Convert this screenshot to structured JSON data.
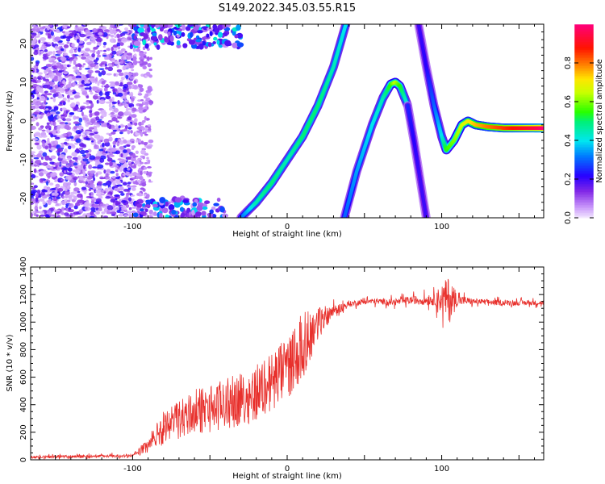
{
  "title": "S149.2022.345.03.55.R15",
  "chart_data": [
    {
      "type": "heatmap",
      "xlabel": "Height of straight line (km)",
      "ylabel": "Frequency (Hz)",
      "xlim": [
        -166,
        166
      ],
      "ylim": [
        -25,
        25
      ],
      "x_ticks": [
        -100,
        0,
        100
      ],
      "y_ticks": [
        20,
        10,
        0,
        -10,
        -20
      ],
      "colorbar": {
        "label": "Normalized spectral amplitude",
        "range": [
          0,
          1
        ],
        "ticks": [
          "0.0",
          "0.2",
          "0.4",
          "0.6",
          "0.8"
        ],
        "tick_values": [
          0.0,
          0.2,
          0.4,
          0.6,
          0.8
        ]
      },
      "traces": [
        {
          "x": [
            -30,
            -20,
            -10,
            0,
            10,
            20,
            30,
            38
          ],
          "y": [
            -25,
            -21,
            -16,
            -10,
            -4,
            4,
            14,
            25
          ],
          "strength": [
            0.3,
            0.45,
            0.5,
            0.45,
            0.5,
            0.5,
            0.45,
            0.4
          ]
        },
        {
          "x": [
            37,
            45,
            55,
            62,
            67,
            70,
            73,
            78
          ],
          "y": [
            -25,
            -13,
            -1,
            6,
            9.5,
            10,
            9,
            4
          ],
          "strength": [
            0.3,
            0.35,
            0.4,
            0.45,
            0.55,
            0.65,
            0.55,
            0.4
          ]
        },
        {
          "x": [
            78,
            82,
            86,
            90
          ],
          "y": [
            4,
            -5,
            -15,
            -25
          ],
          "strength": [
            0.25,
            0.22,
            0.2,
            0.2
          ]
        },
        {
          "x": [
            85,
            90,
            95,
            100,
            103,
            108,
            113,
            117,
            122,
            130,
            140,
            150,
            160,
            166
          ],
          "y": [
            25,
            14,
            4,
            -4,
            -7.5,
            -5,
            -1,
            0,
            -1,
            -1.5,
            -1.8,
            -1.8,
            -1.8,
            -1.8
          ],
          "strength": [
            0.2,
            0.22,
            0.3,
            0.4,
            0.55,
            0.6,
            0.65,
            0.7,
            0.75,
            0.8,
            0.85,
            0.9,
            0.95,
            1.0
          ]
        }
      ]
    },
    {
      "type": "line",
      "xlabel": "Height of straight line (km)",
      "ylabel": "SNR (10 * v/v)",
      "xlim": [
        -166,
        166
      ],
      "ylim": [
        0,
        1400
      ],
      "x_ticks": [
        -100,
        0,
        100
      ],
      "y_ticks": [
        0,
        200,
        400,
        600,
        800,
        1000,
        1200,
        1400
      ],
      "color": "#e8302c",
      "envelope_x": [
        -166,
        -100,
        -90,
        -80,
        -70,
        -60,
        -50,
        -40,
        -30,
        -20,
        -10,
        0,
        10,
        20,
        30,
        40,
        50,
        60,
        70,
        80,
        90,
        100,
        110,
        120,
        140,
        166
      ],
      "envelope_y": [
        20,
        30,
        90,
        200,
        250,
        300,
        320,
        350,
        380,
        430,
        500,
        600,
        750,
        950,
        1080,
        1130,
        1150,
        1150,
        1145,
        1160,
        1160,
        1170,
        1160,
        1150,
        1140,
        1140
      ],
      "noise_amp_x": [
        -166,
        -100,
        -90,
        -80,
        -60,
        -40,
        -20,
        0,
        10,
        20,
        30,
        40,
        60,
        80,
        95,
        100,
        105,
        110,
        120,
        166
      ],
      "noise_amp_y": [
        15,
        15,
        80,
        200,
        250,
        280,
        320,
        350,
        380,
        200,
        60,
        30,
        30,
        40,
        60,
        150,
        250,
        60,
        30,
        25
      ]
    }
  ]
}
